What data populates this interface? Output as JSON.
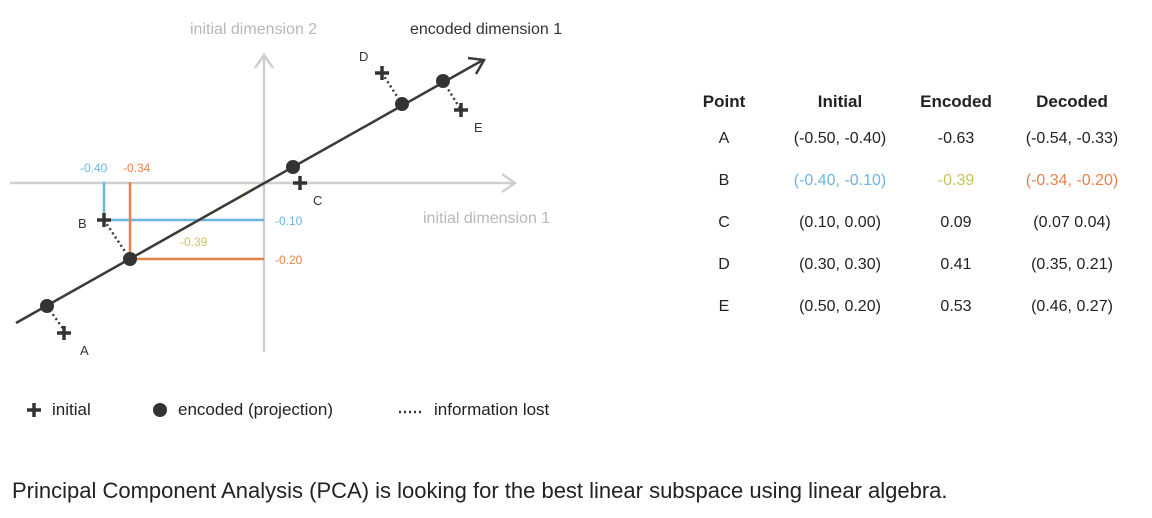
{
  "diagram": {
    "axis_labels": {
      "initial_dim_2": "initial dimension 2",
      "initial_dim_1": "initial dimension 1",
      "encoded_dim_1": "encoded dimension 1"
    },
    "point_labels": [
      "A",
      "B",
      "C",
      "D",
      "E"
    ],
    "annotations": {
      "b_x_initial": "-0.40",
      "b_x_decoded": "-0.34",
      "b_y_initial": "-0.10",
      "b_y_decoded": "-0.20",
      "b_encoded": "-0.39"
    },
    "colors": {
      "initial": "#6bb5e3",
      "decoded": "#e8824a",
      "encoded": "#d4cf6a",
      "axis": "#cfcfcf",
      "line": "#3a3a3a"
    }
  },
  "table": {
    "headers": [
      "Point",
      "Initial",
      "Encoded",
      "Decoded"
    ],
    "rows": [
      {
        "point": "A",
        "initial": "(-0.50, -0.40)",
        "encoded": "-0.63",
        "decoded": "(-0.54, -0.33)"
      },
      {
        "point": "B",
        "initial": "(-0.40, -0.10)",
        "encoded": "-0.39",
        "decoded": "(-0.34, -0.20)"
      },
      {
        "point": "C",
        "initial": "(0.10, 0.00)",
        "encoded": "0.09",
        "decoded": "(0.07 0.04)"
      },
      {
        "point": "D",
        "initial": "(0.30, 0.30)",
        "encoded": "0.41",
        "decoded": "(0.35, 0.21)"
      },
      {
        "point": "E",
        "initial": "(0.50, 0.20)",
        "encoded": "0.53",
        "decoded": "(0.46, 0.27)"
      }
    ]
  },
  "legend": {
    "initial": "initial",
    "encoded": "encoded (projection)",
    "lost": "information lost"
  },
  "caption": "Principal Component Analysis (PCA) is looking for the best linear subspace using linear algebra."
}
